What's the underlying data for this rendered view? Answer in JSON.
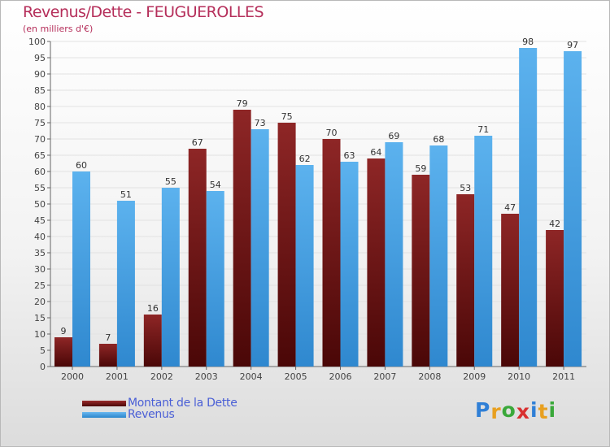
{
  "chart_data": {
    "type": "bar",
    "title": "Revenus/Dette - FEUGUEROLLES",
    "subtitle": "(en milliers d'€)",
    "categories": [
      "2000",
      "2001",
      "2002",
      "2003",
      "2004",
      "2005",
      "2006",
      "2007",
      "2008",
      "2009",
      "2010",
      "2011"
    ],
    "series": [
      {
        "name": "Montant de la Dette",
        "color": "#7a1c1c",
        "values": [
          9,
          7,
          16,
          67,
          79,
          75,
          70,
          64,
          59,
          53,
          47,
          42
        ]
      },
      {
        "name": "Revenus",
        "color": "#4aa3e6",
        "values": [
          60,
          51,
          55,
          54,
          73,
          62,
          63,
          69,
          68,
          71,
          98,
          97
        ]
      }
    ],
    "ylim": [
      0,
      100
    ],
    "yticks": [
      0,
      5,
      10,
      15,
      20,
      25,
      30,
      35,
      40,
      45,
      50,
      55,
      60,
      65,
      70,
      75,
      80,
      85,
      90,
      95,
      100
    ],
    "grid": true,
    "legend_position": "bottom-left"
  },
  "logo": {
    "letters": [
      "P",
      "r",
      "o",
      "x",
      "i",
      "t",
      "i"
    ],
    "colors": [
      "#2f7fd6",
      "#e8a020",
      "#3aa83a",
      "#d83030",
      "#2f7fd6",
      "#e8a020",
      "#3aa83a"
    ]
  }
}
